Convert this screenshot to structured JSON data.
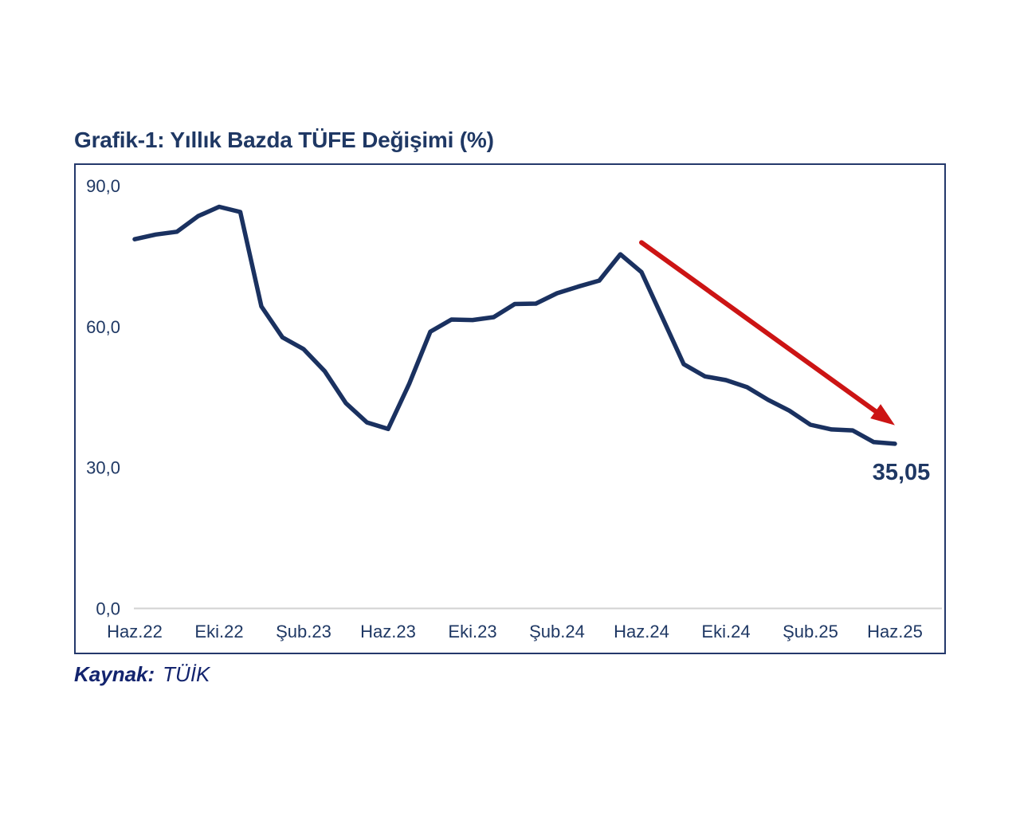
{
  "header": {
    "title": "Grafik-1: Yıllık Bazda TÜFE Değişimi (%)"
  },
  "source": {
    "label": "Kaynak:",
    "value": "TÜİK"
  },
  "chart_data": {
    "type": "line",
    "title": "Grafik-1: Yıllık Bazda TÜFE Değişimi (%)",
    "period": {
      "start": "Haz.22",
      "end": "Haz.25",
      "frequency": "monthly"
    },
    "values": [
      78.6,
      79.6,
      80.2,
      83.5,
      85.5,
      84.4,
      64.3,
      57.7,
      55.2,
      50.5,
      43.7,
      39.6,
      38.2,
      47.8,
      58.9,
      61.5,
      61.4,
      62.0,
      64.8,
      64.9,
      67.1,
      68.5,
      69.8,
      75.4,
      71.6,
      61.8,
      52.0,
      49.4,
      48.6,
      47.1,
      44.4,
      42.1,
      39.1,
      38.1,
      37.9,
      35.4,
      35.05
    ],
    "x_tick_indices": [
      0,
      4,
      8,
      12,
      16,
      20,
      24,
      28,
      32,
      36
    ],
    "x_tick_labels": [
      "Haz.22",
      "Eki.22",
      "Şub.23",
      "Haz.23",
      "Eki.23",
      "Şub.24",
      "Haz.24",
      "Eki.24",
      "Şub.25",
      "Haz.25"
    ],
    "ylim": [
      0,
      90
    ],
    "ytick_values": [
      0,
      30,
      60,
      90
    ],
    "ytick_labels": [
      "0,0",
      "30,0",
      "60,0",
      "90,0"
    ],
    "grid": false,
    "legend": false,
    "annotations": {
      "end_label": "35,05",
      "arrow": {
        "from_index": 24,
        "from_value": 77.9,
        "to_index": 36,
        "to_value": 39.0
      }
    },
    "colors": {
      "line": "#1a3160",
      "arrow": "#cc1414",
      "text": "#1f3864",
      "axis_line": "#d2d2d2",
      "frame_border": "#24386b"
    }
  }
}
